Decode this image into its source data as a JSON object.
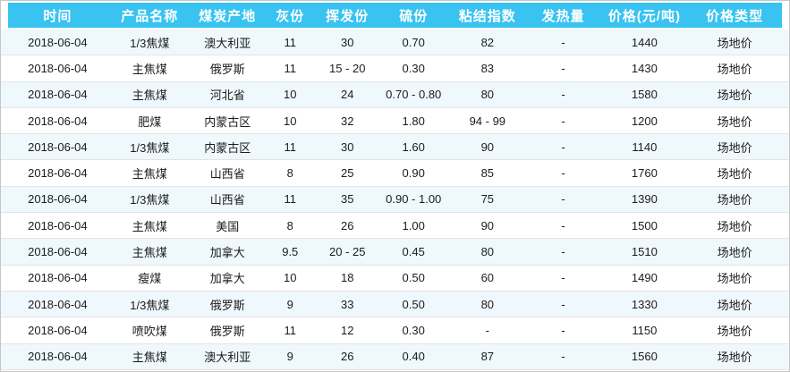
{
  "colors": {
    "header_bg": "#38c3f1",
    "header_text": "#ffffff",
    "stripe": "#eff8fd",
    "row_line": "#e4e4e4",
    "border": "#c6c6c6",
    "cell_text": "#1c1c1c"
  },
  "table": {
    "columns": [
      {
        "key": "time",
        "label": "时间"
      },
      {
        "key": "product-name",
        "label": "产品名称"
      },
      {
        "key": "coal-origin",
        "label": "煤炭产地"
      },
      {
        "key": "ash",
        "label": "灰份"
      },
      {
        "key": "volatile",
        "label": "挥发份"
      },
      {
        "key": "sulfur",
        "label": "硫份"
      },
      {
        "key": "caking-index",
        "label": "粘结指数"
      },
      {
        "key": "calorific-value",
        "label": "发热量"
      },
      {
        "key": "price",
        "label": "价格(元/吨)"
      },
      {
        "key": "price-type",
        "label": "价格类型"
      }
    ],
    "rows": [
      [
        "2018-06-04",
        "1/3焦煤",
        "澳大利亚",
        "11",
        "30",
        "0.70",
        "82",
        "-",
        "1440",
        "场地价"
      ],
      [
        "2018-06-04",
        "主焦煤",
        "俄罗斯",
        "11",
        "15 - 20",
        "0.30",
        "83",
        "-",
        "1430",
        "场地价"
      ],
      [
        "2018-06-04",
        "主焦煤",
        "河北省",
        "10",
        "24",
        "0.70 - 0.80",
        "80",
        "-",
        "1580",
        "场地价"
      ],
      [
        "2018-06-04",
        "肥煤",
        "内蒙古区",
        "10",
        "32",
        "1.80",
        "94 - 99",
        "-",
        "1200",
        "场地价"
      ],
      [
        "2018-06-04",
        "1/3焦煤",
        "内蒙古区",
        "11",
        "30",
        "1.60",
        "90",
        "-",
        "1140",
        "场地价"
      ],
      [
        "2018-06-04",
        "主焦煤",
        "山西省",
        "8",
        "25",
        "0.90",
        "85",
        "-",
        "1760",
        "场地价"
      ],
      [
        "2018-06-04",
        "1/3焦煤",
        "山西省",
        "11",
        "35",
        "0.90 - 1.00",
        "75",
        "-",
        "1390",
        "场地价"
      ],
      [
        "2018-06-04",
        "主焦煤",
        "美国",
        "8",
        "26",
        "1.00",
        "90",
        "-",
        "1500",
        "场地价"
      ],
      [
        "2018-06-04",
        "主焦煤",
        "加拿大",
        "9.5",
        "20 - 25",
        "0.45",
        "80",
        "-",
        "1510",
        "场地价"
      ],
      [
        "2018-06-04",
        "瘦煤",
        "加拿大",
        "10",
        "18",
        "0.50",
        "60",
        "-",
        "1490",
        "场地价"
      ],
      [
        "2018-06-04",
        "1/3焦煤",
        "俄罗斯",
        "9",
        "33",
        "0.50",
        "80",
        "-",
        "1330",
        "场地价"
      ],
      [
        "2018-06-04",
        "喷吹煤",
        "俄罗斯",
        "11",
        "12",
        "0.30",
        "-",
        "-",
        "1150",
        "场地价"
      ],
      [
        "2018-06-04",
        "主焦煤",
        "澳大利亚",
        "9",
        "26",
        "0.40",
        "87",
        "-",
        "1560",
        "场地价"
      ]
    ]
  }
}
